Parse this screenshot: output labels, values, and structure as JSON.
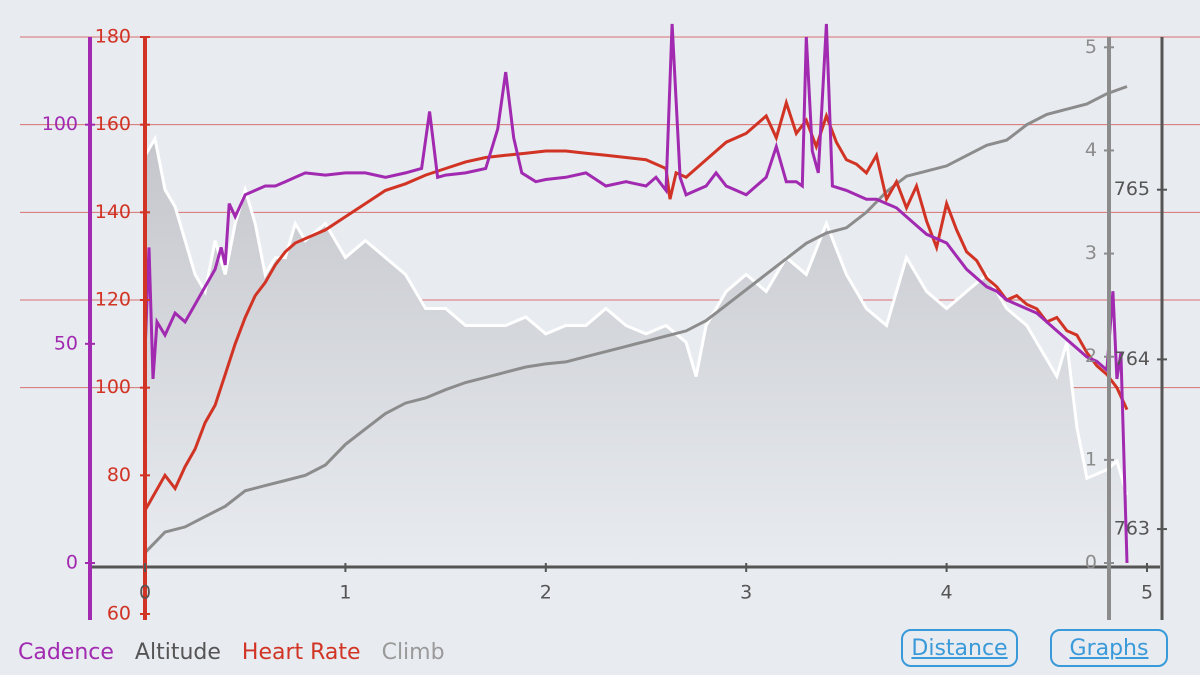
{
  "legend": {
    "cadence": "Cadence",
    "altitude": "Altitude",
    "heart_rate": "Heart Rate",
    "climb": "Climb"
  },
  "buttons": {
    "distance": "Distance",
    "graphs": "Graphs"
  },
  "colors": {
    "background": "#e8ebf0",
    "cadence": "#a12ab0",
    "heart_rate": "#d13424",
    "altitude_line": "#ffffff",
    "altitude_fill": "#c8cad0",
    "climb": "#8c8c8c",
    "axis": "#555555",
    "grid": "#d77070",
    "button": "#3a9ad9"
  },
  "chart_data": {
    "type": "line",
    "x_axis": {
      "label": "Distance",
      "range": [
        0,
        5
      ],
      "ticks": [
        0,
        1,
        2,
        3,
        4,
        5
      ]
    },
    "axes": {
      "cadence": {
        "range": [
          0,
          120
        ],
        "ticks": [
          0,
          50,
          100
        ]
      },
      "heart_rate": {
        "range": [
          60,
          180
        ],
        "ticks": [
          60,
          80,
          100,
          120,
          140,
          160,
          180
        ]
      },
      "climb": {
        "range": [
          0,
          5.1
        ],
        "ticks": [
          0,
          1,
          2,
          3,
          4,
          5
        ]
      },
      "altitude": {
        "range": [
          762.8,
          765.9
        ],
        "ticks": [
          763,
          764,
          765
        ]
      }
    },
    "grid": true,
    "series": [
      {
        "name": "Heart Rate",
        "axis": "heart_rate",
        "points": [
          [
            0,
            72
          ],
          [
            0.05,
            76
          ],
          [
            0.1,
            80
          ],
          [
            0.15,
            77
          ],
          [
            0.2,
            82
          ],
          [
            0.25,
            86
          ],
          [
            0.3,
            92
          ],
          [
            0.35,
            96
          ],
          [
            0.4,
            103
          ],
          [
            0.45,
            110
          ],
          [
            0.5,
            116
          ],
          [
            0.55,
            121
          ],
          [
            0.6,
            124
          ],
          [
            0.65,
            128
          ],
          [
            0.7,
            131
          ],
          [
            0.75,
            133
          ],
          [
            0.8,
            134
          ],
          [
            0.9,
            136
          ],
          [
            1.0,
            139
          ],
          [
            1.1,
            142
          ],
          [
            1.2,
            145
          ],
          [
            1.3,
            146.5
          ],
          [
            1.4,
            148.5
          ],
          [
            1.5,
            150
          ],
          [
            1.6,
            151.5
          ],
          [
            1.7,
            152.5
          ],
          [
            1.8,
            153
          ],
          [
            1.9,
            153.5
          ],
          [
            2.0,
            154
          ],
          [
            2.1,
            154
          ],
          [
            2.2,
            153.5
          ],
          [
            2.3,
            153
          ],
          [
            2.4,
            152.5
          ],
          [
            2.5,
            152
          ],
          [
            2.6,
            150
          ],
          [
            2.62,
            143
          ],
          [
            2.65,
            149
          ],
          [
            2.7,
            148
          ],
          [
            2.8,
            152
          ],
          [
            2.9,
            156
          ],
          [
            3.0,
            158
          ],
          [
            3.1,
            162
          ],
          [
            3.15,
            157
          ],
          [
            3.2,
            165
          ],
          [
            3.25,
            158
          ],
          [
            3.3,
            161
          ],
          [
            3.35,
            155
          ],
          [
            3.4,
            162
          ],
          [
            3.45,
            156
          ],
          [
            3.5,
            152
          ],
          [
            3.55,
            151
          ],
          [
            3.6,
            149
          ],
          [
            3.65,
            153
          ],
          [
            3.7,
            143
          ],
          [
            3.75,
            147
          ],
          [
            3.8,
            141
          ],
          [
            3.85,
            146
          ],
          [
            3.9,
            138
          ],
          [
            3.95,
            132
          ],
          [
            4.0,
            142
          ],
          [
            4.05,
            136
          ],
          [
            4.1,
            131
          ],
          [
            4.15,
            129
          ],
          [
            4.2,
            125
          ],
          [
            4.25,
            123
          ],
          [
            4.3,
            120
          ],
          [
            4.35,
            121
          ],
          [
            4.4,
            119
          ],
          [
            4.45,
            118
          ],
          [
            4.5,
            115
          ],
          [
            4.55,
            116
          ],
          [
            4.6,
            113
          ],
          [
            4.65,
            112
          ],
          [
            4.7,
            108
          ],
          [
            4.75,
            105
          ],
          [
            4.8,
            103
          ],
          [
            4.85,
            100
          ],
          [
            4.9,
            95
          ]
        ]
      },
      {
        "name": "Cadence",
        "axis": "cadence",
        "points": [
          [
            0,
            48
          ],
          [
            0.02,
            72
          ],
          [
            0.04,
            42
          ],
          [
            0.06,
            55
          ],
          [
            0.1,
            52
          ],
          [
            0.15,
            57
          ],
          [
            0.2,
            55
          ],
          [
            0.25,
            59
          ],
          [
            0.3,
            63
          ],
          [
            0.35,
            67
          ],
          [
            0.38,
            72
          ],
          [
            0.4,
            68
          ],
          [
            0.42,
            82
          ],
          [
            0.45,
            79
          ],
          [
            0.5,
            84
          ],
          [
            0.55,
            85
          ],
          [
            0.6,
            86
          ],
          [
            0.65,
            86
          ],
          [
            0.7,
            87
          ],
          [
            0.75,
            88
          ],
          [
            0.8,
            89
          ],
          [
            0.9,
            88.5
          ],
          [
            1.0,
            89
          ],
          [
            1.1,
            89
          ],
          [
            1.2,
            88
          ],
          [
            1.3,
            89
          ],
          [
            1.38,
            90
          ],
          [
            1.42,
            103
          ],
          [
            1.46,
            88
          ],
          [
            1.5,
            88.5
          ],
          [
            1.6,
            89
          ],
          [
            1.7,
            90
          ],
          [
            1.76,
            99
          ],
          [
            1.8,
            112
          ],
          [
            1.84,
            97
          ],
          [
            1.88,
            89
          ],
          [
            1.95,
            87
          ],
          [
            2.0,
            87.5
          ],
          [
            2.1,
            88
          ],
          [
            2.2,
            89
          ],
          [
            2.3,
            86
          ],
          [
            2.4,
            87
          ],
          [
            2.5,
            86
          ],
          [
            2.55,
            88
          ],
          [
            2.6,
            85
          ],
          [
            2.63,
            123
          ],
          [
            2.67,
            88
          ],
          [
            2.7,
            84
          ],
          [
            2.75,
            85
          ],
          [
            2.8,
            86
          ],
          [
            2.85,
            89
          ],
          [
            2.9,
            86
          ],
          [
            2.95,
            85
          ],
          [
            3.0,
            84
          ],
          [
            3.05,
            86
          ],
          [
            3.1,
            88
          ],
          [
            3.15,
            95
          ],
          [
            3.2,
            87
          ],
          [
            3.25,
            87
          ],
          [
            3.28,
            86
          ],
          [
            3.3,
            120
          ],
          [
            3.33,
            94
          ],
          [
            3.36,
            89
          ],
          [
            3.4,
            123
          ],
          [
            3.43,
            86
          ],
          [
            3.5,
            85
          ],
          [
            3.6,
            83
          ],
          [
            3.65,
            83
          ],
          [
            3.7,
            82
          ],
          [
            3.75,
            81
          ],
          [
            3.8,
            79
          ],
          [
            3.85,
            77
          ],
          [
            3.9,
            75
          ],
          [
            3.95,
            74
          ],
          [
            4.0,
            73
          ],
          [
            4.05,
            70
          ],
          [
            4.1,
            67
          ],
          [
            4.15,
            65
          ],
          [
            4.2,
            63
          ],
          [
            4.25,
            62
          ],
          [
            4.3,
            60
          ],
          [
            4.35,
            59
          ],
          [
            4.4,
            58
          ],
          [
            4.45,
            57
          ],
          [
            4.5,
            55
          ],
          [
            4.55,
            53
          ],
          [
            4.6,
            51
          ],
          [
            4.65,
            49
          ],
          [
            4.7,
            47
          ],
          [
            4.75,
            46
          ],
          [
            4.8,
            44
          ],
          [
            4.83,
            62
          ],
          [
            4.85,
            42
          ],
          [
            4.87,
            48
          ],
          [
            4.9,
            0
          ]
        ]
      },
      {
        "name": "Climb",
        "axis": "climb",
        "points": [
          [
            0,
            0.1
          ],
          [
            0.05,
            0.2
          ],
          [
            0.1,
            0.3
          ],
          [
            0.2,
            0.35
          ],
          [
            0.3,
            0.45
          ],
          [
            0.4,
            0.55
          ],
          [
            0.5,
            0.7
          ],
          [
            0.6,
            0.75
          ],
          [
            0.7,
            0.8
          ],
          [
            0.8,
            0.85
          ],
          [
            0.9,
            0.95
          ],
          [
            1.0,
            1.15
          ],
          [
            1.1,
            1.3
          ],
          [
            1.2,
            1.45
          ],
          [
            1.3,
            1.55
          ],
          [
            1.4,
            1.6
          ],
          [
            1.5,
            1.68
          ],
          [
            1.6,
            1.75
          ],
          [
            1.7,
            1.8
          ],
          [
            1.8,
            1.85
          ],
          [
            1.9,
            1.9
          ],
          [
            2.0,
            1.93
          ],
          [
            2.1,
            1.95
          ],
          [
            2.2,
            2.0
          ],
          [
            2.3,
            2.05
          ],
          [
            2.4,
            2.1
          ],
          [
            2.5,
            2.15
          ],
          [
            2.6,
            2.2
          ],
          [
            2.7,
            2.25
          ],
          [
            2.8,
            2.35
          ],
          [
            2.9,
            2.5
          ],
          [
            3.0,
            2.65
          ],
          [
            3.1,
            2.8
          ],
          [
            3.2,
            2.95
          ],
          [
            3.3,
            3.1
          ],
          [
            3.4,
            3.2
          ],
          [
            3.5,
            3.25
          ],
          [
            3.6,
            3.4
          ],
          [
            3.7,
            3.6
          ],
          [
            3.8,
            3.75
          ],
          [
            3.9,
            3.8
          ],
          [
            4.0,
            3.85
          ],
          [
            4.1,
            3.95
          ],
          [
            4.2,
            4.05
          ],
          [
            4.3,
            4.1
          ],
          [
            4.4,
            4.25
          ],
          [
            4.5,
            4.35
          ],
          [
            4.6,
            4.4
          ],
          [
            4.7,
            4.45
          ],
          [
            4.8,
            4.55
          ],
          [
            4.9,
            4.62
          ]
        ]
      },
      {
        "name": "Altitude",
        "axis": "altitude",
        "fill": true,
        "points": [
          [
            0,
            765.2
          ],
          [
            0.05,
            765.3
          ],
          [
            0.1,
            765.0
          ],
          [
            0.15,
            764.9
          ],
          [
            0.2,
            764.7
          ],
          [
            0.25,
            764.5
          ],
          [
            0.3,
            764.4
          ],
          [
            0.35,
            764.7
          ],
          [
            0.4,
            764.5
          ],
          [
            0.45,
            764.8
          ],
          [
            0.5,
            765.0
          ],
          [
            0.55,
            764.8
          ],
          [
            0.6,
            764.5
          ],
          [
            0.65,
            764.6
          ],
          [
            0.7,
            764.6
          ],
          [
            0.75,
            764.8
          ],
          [
            0.8,
            764.7
          ],
          [
            0.9,
            764.8
          ],
          [
            1.0,
            764.6
          ],
          [
            1.1,
            764.7
          ],
          [
            1.2,
            764.6
          ],
          [
            1.3,
            764.5
          ],
          [
            1.4,
            764.3
          ],
          [
            1.5,
            764.3
          ],
          [
            1.6,
            764.2
          ],
          [
            1.7,
            764.2
          ],
          [
            1.8,
            764.2
          ],
          [
            1.9,
            764.25
          ],
          [
            2.0,
            764.15
          ],
          [
            2.1,
            764.2
          ],
          [
            2.2,
            764.2
          ],
          [
            2.3,
            764.3
          ],
          [
            2.4,
            764.2
          ],
          [
            2.5,
            764.15
          ],
          [
            2.6,
            764.2
          ],
          [
            2.7,
            764.1
          ],
          [
            2.75,
            763.9
          ],
          [
            2.8,
            764.2
          ],
          [
            2.9,
            764.4
          ],
          [
            3.0,
            764.5
          ],
          [
            3.1,
            764.4
          ],
          [
            3.2,
            764.6
          ],
          [
            3.3,
            764.5
          ],
          [
            3.4,
            764.8
          ],
          [
            3.5,
            764.5
          ],
          [
            3.6,
            764.3
          ],
          [
            3.7,
            764.2
          ],
          [
            3.8,
            764.6
          ],
          [
            3.9,
            764.4
          ],
          [
            4.0,
            764.3
          ],
          [
            4.1,
            764.4
          ],
          [
            4.2,
            764.5
          ],
          [
            4.3,
            764.3
          ],
          [
            4.4,
            764.2
          ],
          [
            4.5,
            764.0
          ],
          [
            4.55,
            763.9
          ],
          [
            4.6,
            764.1
          ],
          [
            4.65,
            763.6
          ],
          [
            4.7,
            763.3
          ],
          [
            4.8,
            763.35
          ],
          [
            4.85,
            763.4
          ],
          [
            4.9,
            763.2
          ]
        ]
      }
    ]
  }
}
